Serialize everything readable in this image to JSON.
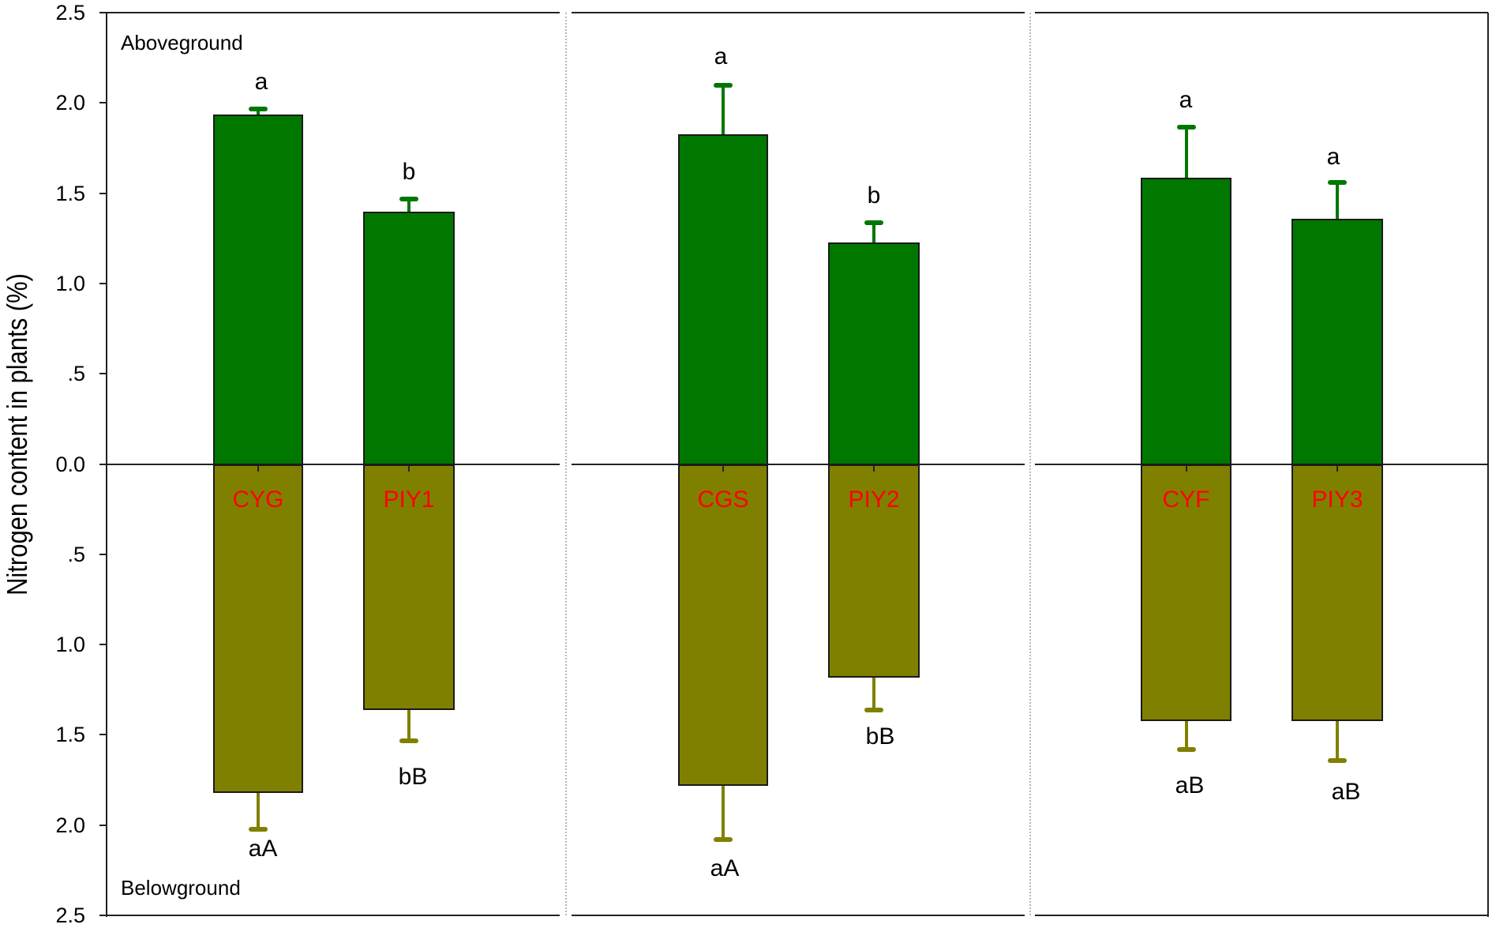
{
  "chart_data": {
    "type": "bar",
    "title": "",
    "xlabel": "",
    "ylabel": "Nitrogen content in plants (%)",
    "ylim": [
      -2.5,
      2.5
    ],
    "yticks": [
      "2.5",
      "2.0",
      "1.5",
      "1.0",
      ".5",
      "0.0",
      ".5",
      "1.0",
      "1.5",
      "2.0",
      "2.5"
    ],
    "region_labels": {
      "above": "Aboveground",
      "below": "Belowground"
    },
    "colors": {
      "above": "#007800",
      "below": "#808000",
      "category_label": "#ff0000"
    },
    "grid": false,
    "legend": null,
    "panels": [
      {
        "categories": [
          "CYG",
          "PIY1"
        ]
      },
      {
        "categories": [
          "CGS",
          "PIY2"
        ]
      },
      {
        "categories": [
          "CYF",
          "PIY3"
        ]
      }
    ],
    "categories": [
      "CYG",
      "PIY1",
      "CGS",
      "PIY2",
      "CYF",
      "PIY3"
    ],
    "series": [
      {
        "name": "Aboveground",
        "values": [
          1.94,
          1.4,
          1.83,
          1.23,
          1.59,
          1.36
        ],
        "error": [
          0.03,
          0.07,
          0.27,
          0.11,
          0.28,
          0.2
        ],
        "significance": [
          "a",
          "b",
          "a",
          "b",
          "a",
          "a"
        ]
      },
      {
        "name": "Belowground",
        "values": [
          1.82,
          1.36,
          1.78,
          1.18,
          1.42,
          1.42
        ],
        "error": [
          0.2,
          0.17,
          0.3,
          0.18,
          0.16,
          0.22
        ],
        "significance": [
          "aA",
          "bB",
          "aA",
          "bB",
          "aB",
          "aB"
        ]
      }
    ]
  }
}
